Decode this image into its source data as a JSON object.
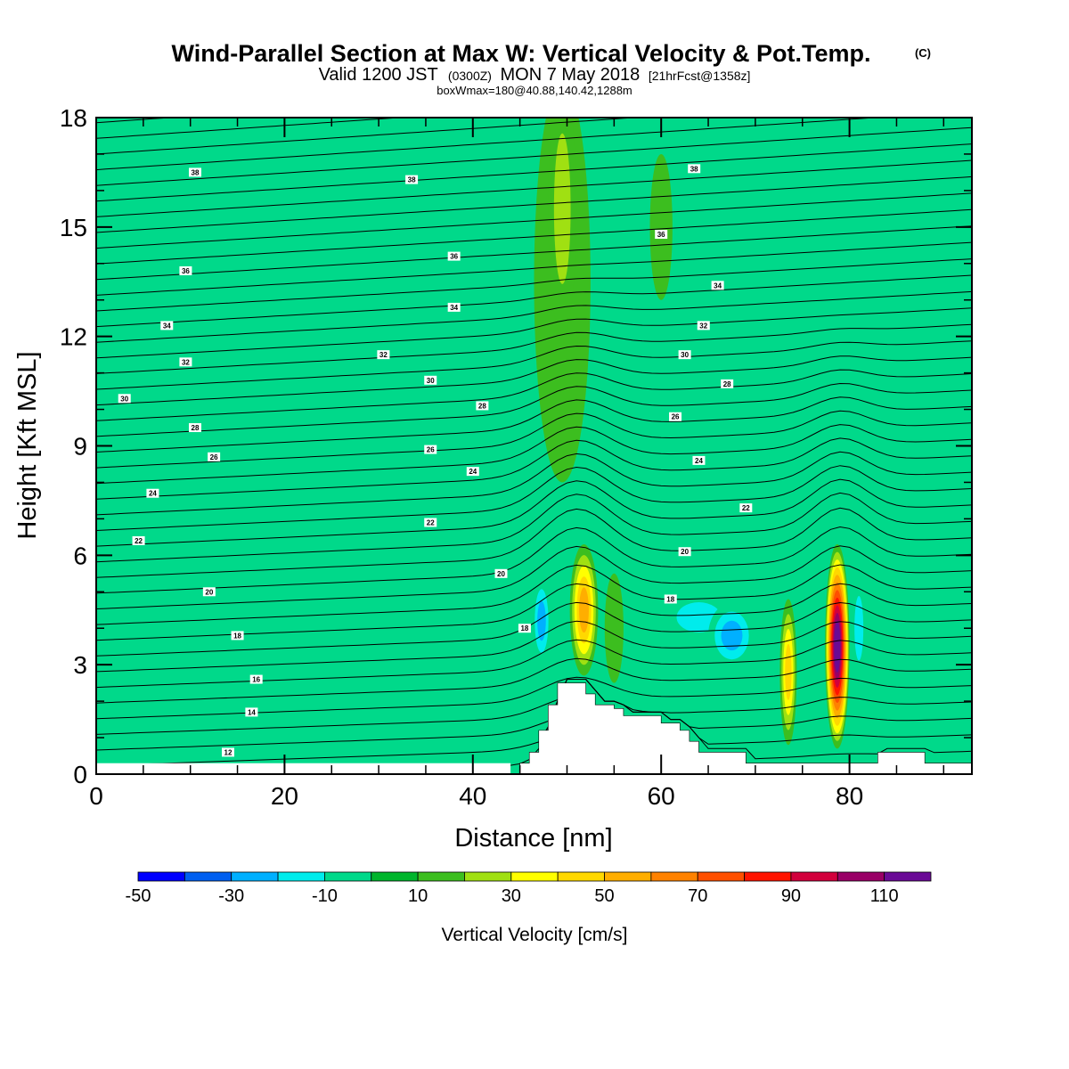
{
  "title": "Wind-Parallel Section at Max W: Vertical Velocity & Pot.Temp.",
  "title_mark": "(C)",
  "subtitle_valid": "Valid 1200 JST",
  "subtitle_utc": "(0300Z)",
  "subtitle_date": "MON 7 May 2018",
  "subtitle_fcst": "[21hrFcst@1358z]",
  "box_info": "boxWmax=180@40.88,140.42,1288m",
  "chart_data": {
    "type": "contour-section",
    "xlabel": "Distance [nm]",
    "ylabel": "Height [Kft MSL]",
    "xlim": [
      0,
      93
    ],
    "ylim": [
      0,
      18
    ],
    "x_ticks": [
      0,
      20,
      40,
      60,
      80
    ],
    "y_ticks": [
      0,
      3,
      6,
      9,
      12,
      15,
      18
    ],
    "colorbar": {
      "label": "Vertical Velocity [cm/s]",
      "levels": [
        -50,
        -40,
        -30,
        -20,
        -10,
        0,
        10,
        20,
        30,
        40,
        50,
        60,
        70,
        80,
        90,
        100,
        110,
        120
      ],
      "tick_labels": [
        -50,
        -30,
        -10,
        10,
        30,
        50,
        70,
        90,
        110
      ],
      "colors": [
        "#0000ff",
        "#005ff0",
        "#00b0ff",
        "#00ecec",
        "#00d98a",
        "#00b52c",
        "#3cbe1f",
        "#a0e012",
        "#ffff00",
        "#ffd800",
        "#ffae00",
        "#ff8200",
        "#ff5000",
        "#ff1400",
        "#d2003c",
        "#990066",
        "#6a0a96"
      ]
    },
    "background_velocity": 0,
    "velocity_cells": [
      {
        "x": 27.5,
        "y": 11.0,
        "rx": 3.0,
        "ry": 3.2,
        "w": 5
      },
      {
        "x": 26.0,
        "y": 10.0,
        "rx": 1.2,
        "ry": 3.0,
        "w": 5
      },
      {
        "x": 38.0,
        "y": 15.0,
        "rx": 2.5,
        "ry": 4.0,
        "w": 5
      },
      {
        "x": 49.5,
        "y": 13.5,
        "rx": 3.0,
        "ry": 5.5,
        "w": 15
      },
      {
        "x": 49.5,
        "y": 15.5,
        "rx": 1.5,
        "ry": 3.5,
        "w": 25
      },
      {
        "x": 58.0,
        "y": 12.0,
        "rx": 4.5,
        "ry": 6.0,
        "w": 5
      },
      {
        "x": 60.0,
        "y": 15.0,
        "rx": 1.2,
        "ry": 2.0,
        "w": 15
      },
      {
        "x": 84.0,
        "y": 9.5,
        "rx": 2.5,
        "ry": 5.0,
        "w": 5
      },
      {
        "x": 32.5,
        "y": 6.0,
        "rx": 3.0,
        "ry": 1.5,
        "w": 5
      },
      {
        "x": 39.0,
        "y": 8.0,
        "rx": 5.0,
        "ry": 4.0,
        "w": 5
      },
      {
        "x": 47.3,
        "y": 4.2,
        "rx": 1.0,
        "ry": 1.2,
        "w": -30
      },
      {
        "x": 51.8,
        "y": 4.5,
        "rx": 1.5,
        "ry": 1.8,
        "w": 55
      },
      {
        "x": 55.0,
        "y": 4.0,
        "rx": 1.0,
        "ry": 1.5,
        "w": 15
      },
      {
        "x": 64.0,
        "y": 4.3,
        "rx": 4.0,
        "ry": 0.7,
        "w": -15
      },
      {
        "x": 67.5,
        "y": 3.8,
        "rx": 2.5,
        "ry": 0.9,
        "w": -28
      },
      {
        "x": 73.5,
        "y": 2.8,
        "rx": 0.9,
        "ry": 2.0,
        "w": 45
      },
      {
        "x": 78.7,
        "y": 3.5,
        "rx": 1.3,
        "ry": 2.8,
        "w": 110
      },
      {
        "x": 81.0,
        "y": 4.0,
        "rx": 0.8,
        "ry": 1.5,
        "w": -12
      },
      {
        "x": 88.0,
        "y": 4.5,
        "rx": 4.0,
        "ry": 2.0,
        "w": 5
      }
    ],
    "terrain": [
      [
        44.0,
        0.0
      ],
      [
        45.0,
        0.3
      ],
      [
        46.0,
        0.6
      ],
      [
        47.0,
        1.2
      ],
      [
        48.0,
        1.9
      ],
      [
        49.0,
        2.5
      ],
      [
        51.0,
        2.5
      ],
      [
        52.0,
        2.2
      ],
      [
        53.0,
        1.9
      ],
      [
        55.0,
        1.8
      ],
      [
        56.0,
        1.6
      ],
      [
        59.0,
        1.6
      ],
      [
        60.0,
        1.4
      ],
      [
        62.0,
        1.2
      ],
      [
        63.0,
        0.9
      ],
      [
        64.0,
        0.6
      ],
      [
        65.0,
        0.6
      ],
      [
        68.0,
        0.6
      ],
      [
        69.0,
        0.3
      ],
      [
        70.0,
        0.3
      ],
      [
        82.0,
        0.3
      ],
      [
        83.0,
        0.6
      ],
      [
        87.0,
        0.6
      ],
      [
        88.0,
        0.3
      ],
      [
        93.0,
        0.3
      ]
    ],
    "theta_labels": [
      {
        "x": 10.5,
        "y": 16.5,
        "text": "38"
      },
      {
        "x": 33.5,
        "y": 16.3,
        "text": "38"
      },
      {
        "x": 63.5,
        "y": 16.6,
        "text": "38"
      },
      {
        "x": 9.5,
        "y": 13.8,
        "text": "36"
      },
      {
        "x": 38.0,
        "y": 14.2,
        "text": "36"
      },
      {
        "x": 60.0,
        "y": 14.8,
        "text": "36"
      },
      {
        "x": 7.5,
        "y": 12.3,
        "text": "34"
      },
      {
        "x": 38.0,
        "y": 12.8,
        "text": "34"
      },
      {
        "x": 66.0,
        "y": 13.4,
        "text": "34"
      },
      {
        "x": 9.5,
        "y": 11.3,
        "text": "32"
      },
      {
        "x": 30.5,
        "y": 11.5,
        "text": "32"
      },
      {
        "x": 64.5,
        "y": 12.3,
        "text": "32"
      },
      {
        "x": 3.0,
        "y": 10.3,
        "text": "30"
      },
      {
        "x": 35.5,
        "y": 10.8,
        "text": "30"
      },
      {
        "x": 62.5,
        "y": 11.5,
        "text": "30"
      },
      {
        "x": 10.5,
        "y": 9.5,
        "text": "28"
      },
      {
        "x": 41.0,
        "y": 10.1,
        "text": "28"
      },
      {
        "x": 67.0,
        "y": 10.7,
        "text": "28"
      },
      {
        "x": 12.5,
        "y": 8.7,
        "text": "26"
      },
      {
        "x": 35.5,
        "y": 8.9,
        "text": "26"
      },
      {
        "x": 61.5,
        "y": 9.8,
        "text": "26"
      },
      {
        "x": 6.0,
        "y": 7.7,
        "text": "24"
      },
      {
        "x": 40.0,
        "y": 8.3,
        "text": "24"
      },
      {
        "x": 64.0,
        "y": 8.6,
        "text": "24"
      },
      {
        "x": 4.5,
        "y": 6.4,
        "text": "22"
      },
      {
        "x": 35.5,
        "y": 6.9,
        "text": "22"
      },
      {
        "x": 69.0,
        "y": 7.3,
        "text": "22"
      },
      {
        "x": 12.0,
        "y": 5.0,
        "text": "20"
      },
      {
        "x": 43.0,
        "y": 5.5,
        "text": "20"
      },
      {
        "x": 62.5,
        "y": 6.1,
        "text": "20"
      },
      {
        "x": 15.0,
        "y": 3.8,
        "text": "18"
      },
      {
        "x": 45.5,
        "y": 4.0,
        "text": "18"
      },
      {
        "x": 61.0,
        "y": 4.8,
        "text": "18"
      },
      {
        "x": 17.0,
        "y": 2.6,
        "text": "16"
      },
      {
        "x": 16.5,
        "y": 1.7,
        "text": "14"
      },
      {
        "x": 14.0,
        "y": 0.6,
        "text": "12"
      }
    ]
  }
}
